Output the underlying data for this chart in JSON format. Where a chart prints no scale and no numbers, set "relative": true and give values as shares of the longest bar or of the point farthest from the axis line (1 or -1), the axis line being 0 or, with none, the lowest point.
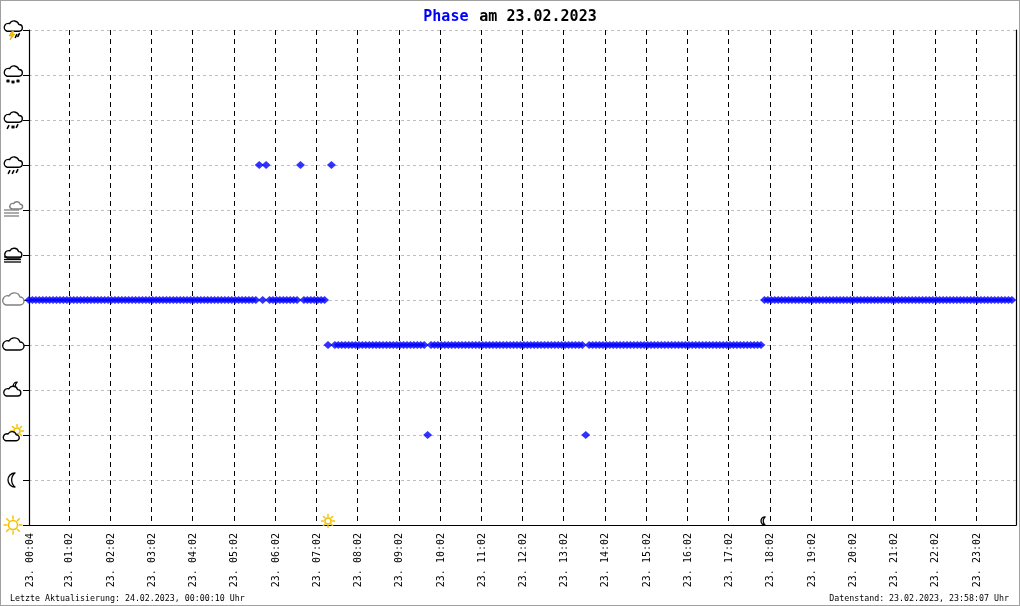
{
  "chart_data": {
    "type": "scatter",
    "title": "am 23.02.2023",
    "relative": true,
    "grid": true,
    "marker": "diamond",
    "annotations": [
      "Letzte Aktualisierung: 24.02.2023, 00:00:10 Uhr",
      "Datenstand: 23.02.2023, 23:58:07 Uhr"
    ],
    "xlim": [
      "2023-02-23T00:04",
      "2023-02-24T00:00"
    ],
    "xticks": [
      {
        "value": "2023-02-23T00:04",
        "label": "23. 00:04"
      },
      {
        "value": "2023-02-23T01:02",
        "label": "23. 01:02"
      },
      {
        "value": "2023-02-23T02:02",
        "label": "23. 02:02"
      },
      {
        "value": "2023-02-23T03:02",
        "label": "23. 03:02"
      },
      {
        "value": "2023-02-23T04:02",
        "label": "23. 04:02"
      },
      {
        "value": "2023-02-23T05:02",
        "label": "23. 05:02"
      },
      {
        "value": "2023-02-23T06:02",
        "label": "23. 06:02"
      },
      {
        "value": "2023-02-23T07:02",
        "label": "23. 07:02"
      },
      {
        "value": "2023-02-23T08:02",
        "label": "23. 08:02"
      },
      {
        "value": "2023-02-23T09:02",
        "label": "23. 09:02"
      },
      {
        "value": "2023-02-23T10:02",
        "label": "23. 10:02"
      },
      {
        "value": "2023-02-23T11:02",
        "label": "23. 11:02"
      },
      {
        "value": "2023-02-23T12:02",
        "label": "23. 12:02"
      },
      {
        "value": "2023-02-23T13:02",
        "label": "23. 13:02"
      },
      {
        "value": "2023-02-23T14:02",
        "label": "23. 14:02"
      },
      {
        "value": "2023-02-23T15:02",
        "label": "23. 15:02"
      },
      {
        "value": "2023-02-23T16:02",
        "label": "23. 16:02"
      },
      {
        "value": "2023-02-23T17:02",
        "label": "23. 17:02"
      },
      {
        "value": "2023-02-23T18:02",
        "label": "23. 18:02"
      },
      {
        "value": "2023-02-23T19:02",
        "label": "23. 19:02"
      },
      {
        "value": "2023-02-23T20:02",
        "label": "23. 20:02"
      },
      {
        "value": "2023-02-23T21:02",
        "label": "23. 21:02"
      },
      {
        "value": "2023-02-23T22:02",
        "label": "23. 22:02"
      },
      {
        "value": "2023-02-23T23:02",
        "label": "23. 23:02"
      }
    ],
    "x": [
      "2023-02-23T00:04",
      "2023-02-23T00:09",
      "2023-02-23T00:14",
      "2023-02-23T00:19",
      "2023-02-23T00:24",
      "2023-02-23T00:29",
      "2023-02-23T00:34",
      "2023-02-23T00:39",
      "2023-02-23T00:44",
      "2023-02-23T00:49",
      "2023-02-23T00:54",
      "2023-02-23T00:59",
      "2023-02-23T01:04",
      "2023-02-23T01:09",
      "2023-02-23T01:14",
      "2023-02-23T01:19",
      "2023-02-23T01:24",
      "2023-02-23T01:29",
      "2023-02-23T01:34",
      "2023-02-23T01:39",
      "2023-02-23T01:44",
      "2023-02-23T01:49",
      "2023-02-23T01:54",
      "2023-02-23T01:59",
      "2023-02-23T02:04",
      "2023-02-23T02:09",
      "2023-02-23T02:14",
      "2023-02-23T02:19",
      "2023-02-23T02:24",
      "2023-02-23T02:29",
      "2023-02-23T02:34",
      "2023-02-23T02:39",
      "2023-02-23T02:44",
      "2023-02-23T02:49",
      "2023-02-23T02:54",
      "2023-02-23T02:59",
      "2023-02-23T03:04",
      "2023-02-23T03:09",
      "2023-02-23T03:14",
      "2023-02-23T03:19",
      "2023-02-23T03:24",
      "2023-02-23T03:29",
      "2023-02-23T03:34",
      "2023-02-23T03:39",
      "2023-02-23T03:44",
      "2023-02-23T03:49",
      "2023-02-23T03:54",
      "2023-02-23T03:59",
      "2023-02-23T04:04",
      "2023-02-23T04:09",
      "2023-02-23T04:14",
      "2023-02-23T04:19",
      "2023-02-23T04:24",
      "2023-02-23T04:29",
      "2023-02-23T04:34",
      "2023-02-23T04:39",
      "2023-02-23T04:44",
      "2023-02-23T04:49",
      "2023-02-23T04:54",
      "2023-02-23T04:59",
      "2023-02-23T05:04",
      "2023-02-23T05:09",
      "2023-02-23T05:14",
      "2023-02-23T05:19",
      "2023-02-23T05:24",
      "2023-02-23T05:29",
      "2023-02-23T05:34",
      "2023-02-23T05:39",
      "2023-02-23T05:44",
      "2023-02-23T05:49",
      "2023-02-23T05:54",
      "2023-02-23T05:59",
      "2023-02-23T06:04",
      "2023-02-23T06:09",
      "2023-02-23T06:14",
      "2023-02-23T06:19",
      "2023-02-23T06:24",
      "2023-02-23T06:29",
      "2023-02-23T06:34",
      "2023-02-23T06:39",
      "2023-02-23T06:44",
      "2023-02-23T06:49",
      "2023-02-23T06:54",
      "2023-02-23T06:59",
      "2023-02-23T07:04",
      "2023-02-23T07:09",
      "2023-02-23T07:14",
      "2023-02-23T07:19",
      "2023-02-23T07:24",
      "2023-02-23T07:29",
      "2023-02-23T07:34",
      "2023-02-23T07:39",
      "2023-02-23T07:44",
      "2023-02-23T07:49",
      "2023-02-23T07:54",
      "2023-02-23T07:59",
      "2023-02-23T08:04",
      "2023-02-23T08:09",
      "2023-02-23T08:14",
      "2023-02-23T08:19",
      "2023-02-23T08:24",
      "2023-02-23T08:29",
      "2023-02-23T08:34",
      "2023-02-23T08:39",
      "2023-02-23T08:44",
      "2023-02-23T08:49",
      "2023-02-23T08:54",
      "2023-02-23T08:59",
      "2023-02-23T09:04",
      "2023-02-23T09:09",
      "2023-02-23T09:14",
      "2023-02-23T09:19",
      "2023-02-23T09:24",
      "2023-02-23T09:29",
      "2023-02-23T09:34",
      "2023-02-23T09:39",
      "2023-02-23T09:44",
      "2023-02-23T09:49",
      "2023-02-23T09:54",
      "2023-02-23T09:59",
      "2023-02-23T10:04",
      "2023-02-23T10:09",
      "2023-02-23T10:14",
      "2023-02-23T10:19",
      "2023-02-23T10:24",
      "2023-02-23T10:29",
      "2023-02-23T10:34",
      "2023-02-23T10:39",
      "2023-02-23T10:44",
      "2023-02-23T10:49",
      "2023-02-23T10:54",
      "2023-02-23T10:59",
      "2023-02-23T11:04",
      "2023-02-23T11:09",
      "2023-02-23T11:14",
      "2023-02-23T11:19",
      "2023-02-23T11:24",
      "2023-02-23T11:29",
      "2023-02-23T11:34",
      "2023-02-23T11:39",
      "2023-02-23T11:44",
      "2023-02-23T11:49",
      "2023-02-23T11:54",
      "2023-02-23T11:59",
      "2023-02-23T12:04",
      "2023-02-23T12:09",
      "2023-02-23T12:14",
      "2023-02-23T12:19",
      "2023-02-23T12:24",
      "2023-02-23T12:29",
      "2023-02-23T12:34",
      "2023-02-23T12:39",
      "2023-02-23T12:44",
      "2023-02-23T12:49",
      "2023-02-23T12:54",
      "2023-02-23T12:59",
      "2023-02-23T13:04",
      "2023-02-23T13:09",
      "2023-02-23T13:14",
      "2023-02-23T13:19",
      "2023-02-23T13:24",
      "2023-02-23T13:29",
      "2023-02-23T13:34",
      "2023-02-23T13:39",
      "2023-02-23T13:44",
      "2023-02-23T13:49",
      "2023-02-23T13:54",
      "2023-02-23T13:59",
      "2023-02-23T14:04",
      "2023-02-23T14:09",
      "2023-02-23T14:14",
      "2023-02-23T14:19",
      "2023-02-23T14:24",
      "2023-02-23T14:29",
      "2023-02-23T14:34",
      "2023-02-23T14:39",
      "2023-02-23T14:44",
      "2023-02-23T14:49",
      "2023-02-23T14:54",
      "2023-02-23T14:59",
      "2023-02-23T15:04",
      "2023-02-23T15:09",
      "2023-02-23T15:14",
      "2023-02-23T15:19",
      "2023-02-23T15:24",
      "2023-02-23T15:29",
      "2023-02-23T15:34",
      "2023-02-23T15:39",
      "2023-02-23T15:44",
      "2023-02-23T15:49",
      "2023-02-23T15:54",
      "2023-02-23T15:59",
      "2023-02-23T16:04",
      "2023-02-23T16:09",
      "2023-02-23T16:14",
      "2023-02-23T16:19",
      "2023-02-23T16:24",
      "2023-02-23T16:29",
      "2023-02-23T16:34",
      "2023-02-23T16:39",
      "2023-02-23T16:44",
      "2023-02-23T16:49",
      "2023-02-23T16:54",
      "2023-02-23T16:59",
      "2023-02-23T17:04",
      "2023-02-23T17:09",
      "2023-02-23T17:14",
      "2023-02-23T17:19",
      "2023-02-23T17:24",
      "2023-02-23T17:29",
      "2023-02-23T17:34",
      "2023-02-23T17:39",
      "2023-02-23T17:44",
      "2023-02-23T17:49",
      "2023-02-23T17:54",
      "2023-02-23T17:59",
      "2023-02-23T18:04",
      "2023-02-23T18:09",
      "2023-02-23T18:14",
      "2023-02-23T18:19",
      "2023-02-23T18:24",
      "2023-02-23T18:29",
      "2023-02-23T18:34",
      "2023-02-23T18:39",
      "2023-02-23T18:44",
      "2023-02-23T18:49",
      "2023-02-23T18:54",
      "2023-02-23T18:59",
      "2023-02-23T19:04",
      "2023-02-23T19:09",
      "2023-02-23T19:14",
      "2023-02-23T19:19",
      "2023-02-23T19:24",
      "2023-02-23T19:29",
      "2023-02-23T19:34",
      "2023-02-23T19:39",
      "2023-02-23T19:44",
      "2023-02-23T19:49",
      "2023-02-23T19:54",
      "2023-02-23T19:59",
      "2023-02-23T20:04",
      "2023-02-23T20:09",
      "2023-02-23T20:14",
      "2023-02-23T20:19",
      "2023-02-23T20:24",
      "2023-02-23T20:29",
      "2023-02-23T20:34",
      "2023-02-23T20:39",
      "2023-02-23T20:44",
      "2023-02-23T20:49",
      "2023-02-23T20:54",
      "2023-02-23T20:59",
      "2023-02-23T21:04",
      "2023-02-23T21:09",
      "2023-02-23T21:14",
      "2023-02-23T21:19",
      "2023-02-23T21:24",
      "2023-02-23T21:29",
      "2023-02-23T21:34",
      "2023-02-23T21:39",
      "2023-02-23T21:44",
      "2023-02-23T21:49",
      "2023-02-23T21:54",
      "2023-02-23T21:59",
      "2023-02-23T22:04",
      "2023-02-23T22:09",
      "2023-02-23T22:14",
      "2023-02-23T22:19",
      "2023-02-23T22:24",
      "2023-02-23T22:29",
      "2023-02-23T22:34",
      "2023-02-23T22:39",
      "2023-02-23T22:44",
      "2023-02-23T22:49",
      "2023-02-23T22:54",
      "2023-02-23T22:59",
      "2023-02-23T23:04",
      "2023-02-23T23:09",
      "2023-02-23T23:14",
      "2023-02-23T23:19",
      "2023-02-23T23:24",
      "2023-02-23T23:29",
      "2023-02-23T23:34",
      "2023-02-23T23:39",
      "2023-02-23T23:44",
      "2023-02-23T23:49",
      "2023-02-23T23:54"
    ],
    "series": [
      {
        "name": "Phase",
        "color": "#0000ff",
        "values": [
          0.625,
          0.625,
          0.625,
          0.625,
          0.625,
          0.625,
          0.625,
          0.625,
          0.625,
          0.625,
          0.625,
          0.625,
          0.625,
          0.625,
          0.625,
          0.625,
          0.625,
          0.625,
          0.625,
          0.625,
          0.625,
          0.625,
          0.625,
          0.625,
          0.625,
          0.625,
          0.625,
          0.625,
          0.625,
          0.625,
          0.625,
          0.625,
          0.625,
          0.625,
          0.625,
          0.625,
          0.625,
          0.625,
          0.625,
          0.625,
          0.625,
          0.625,
          0.625,
          0.625,
          0.625,
          0.625,
          0.625,
          0.625,
          0.625,
          0.625,
          0.625,
          0.625,
          0.625,
          0.625,
          0.625,
          0.625,
          0.625,
          0.625,
          0.625,
          0.625,
          0.625,
          0.625,
          0.625,
          0.625,
          0.625,
          0.625,
          0.625,
          1,
          0.625,
          1,
          0.625,
          0.625,
          0.625,
          0.625,
          0.625,
          0.625,
          0.625,
          0.625,
          0.625,
          1,
          0.625,
          0.625,
          0.625,
          0.625,
          0.625,
          0.625,
          0.625,
          0.5,
          1,
          0.5,
          0.5,
          0.5,
          0.5,
          0.5,
          0.5,
          0.5,
          0.5,
          0.5,
          0.5,
          0.5,
          0.5,
          0.5,
          0.5,
          0.5,
          0.5,
          0.5,
          0.5,
          0.5,
          0.5,
          0.5,
          0.5,
          0.5,
          0.5,
          0.5,
          0.5,
          0.5,
          0.25,
          0.5,
          0.5,
          0.5,
          0.5,
          0.5,
          0.5,
          0.5,
          0.5,
          0.5,
          0.5,
          0.5,
          0.5,
          0.5,
          0.5,
          0.5,
          0.5,
          0.5,
          0.5,
          0.5,
          0.5,
          0.5,
          0.5,
          0.5,
          0.5,
          0.5,
          0.5,
          0.5,
          0.5,
          0.5,
          0.5,
          0.5,
          0.5,
          0.5,
          0.5,
          0.5,
          0.5,
          0.5,
          0.5,
          0.5,
          0.5,
          0.5,
          0.5,
          0.5,
          0.5,
          0.5,
          0.25,
          0.5,
          0.5,
          0.5,
          0.5,
          0.5,
          0.5,
          0.5,
          0.5,
          0.5,
          0.5,
          0.5,
          0.5,
          0.5,
          0.5,
          0.5,
          0.5,
          0.5,
          0.5,
          0.5,
          0.5,
          0.5,
          0.5,
          0.5,
          0.5,
          0.5,
          0.5,
          0.5,
          0.5,
          0.5,
          0.5,
          0.5,
          0.5,
          0.5,
          0.5,
          0.5,
          0.5,
          0.5,
          0.5,
          0.5,
          0.5,
          0.5,
          0.5,
          0.5,
          0.5,
          0.5,
          0.5,
          0.5,
          0.5,
          0.5,
          0.5,
          0.5,
          0.625,
          0.625,
          0.625,
          0.625,
          0.625,
          0.625,
          0.625,
          0.625,
          0.625,
          0.625,
          0.625,
          0.625,
          0.625,
          0.625,
          0.625,
          0.625,
          0.625,
          0.625,
          0.625,
          0.625,
          0.625,
          0.625,
          0.625,
          0.625,
          0.625,
          0.625,
          0.625,
          0.625,
          0.625,
          0.625,
          0.625,
          0.625,
          0.625,
          0.625,
          0.625,
          0.625,
          0.625,
          0.625,
          0.625,
          0.625,
          0.625,
          0.625,
          0.625,
          0.625,
          0.625,
          0.625,
          0.625,
          0.625,
          0.625,
          0.625,
          0.625,
          0.625,
          0.625,
          0.625,
          0.625,
          0.625,
          0.625,
          0.625,
          0.625,
          0.625,
          0.625,
          0.625,
          0.625,
          0.625,
          0.625,
          0.625,
          0.625,
          0.625,
          0.625,
          0.625,
          0.625,
          0.625,
          0.625
        ]
      }
    ]
  }
}
